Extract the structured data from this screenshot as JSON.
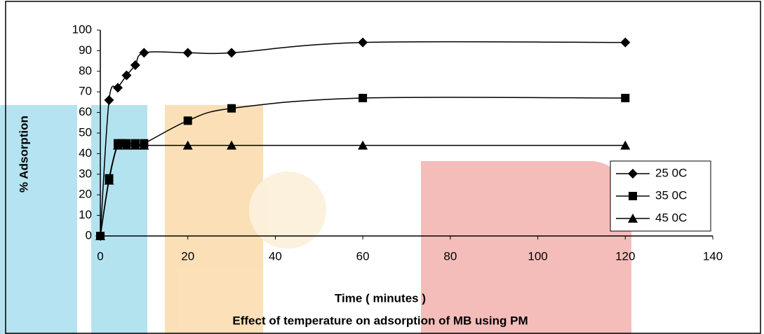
{
  "chart_data": {
    "type": "line",
    "title": "Effect of temperature on adsorption of MB using PM",
    "x_label": "Time ( minutes )",
    "y_label": "% Adsorption",
    "series": [
      {
        "name": "25 0C",
        "color": "#000000",
        "marker": "diamond",
        "x": [
          0,
          2,
          4,
          6,
          8,
          10,
          20,
          30,
          60,
          120
        ],
        "values": [
          0,
          66,
          72,
          78,
          83,
          89,
          89,
          89,
          94,
          94
        ]
      },
      {
        "name": "35 0C",
        "color": "#000000",
        "marker": "square",
        "x": [
          0,
          2,
          4,
          5,
          6,
          8,
          10,
          20,
          30,
          60,
          120
        ],
        "values": [
          0,
          28,
          45,
          45,
          45,
          45,
          45,
          56,
          62,
          67,
          67
        ]
      },
      {
        "name": "45 0C",
        "color": "#000000",
        "marker": "triangle",
        "x": [
          0,
          2,
          4,
          6,
          8,
          10,
          20,
          30,
          60,
          120
        ],
        "values": [
          0,
          27,
          44,
          44,
          44,
          44,
          44,
          44,
          44,
          44
        ]
      }
    ],
    "xlim": [
      0,
      140
    ],
    "xticks": [
      0,
      20,
      40,
      60,
      80,
      100,
      120,
      140
    ],
    "ylim": [
      0,
      100
    ],
    "yticks": [
      0,
      10,
      20,
      30,
      40,
      50,
      60,
      70,
      80,
      90,
      100
    ],
    "grid": false,
    "legend": "lower right"
  }
}
